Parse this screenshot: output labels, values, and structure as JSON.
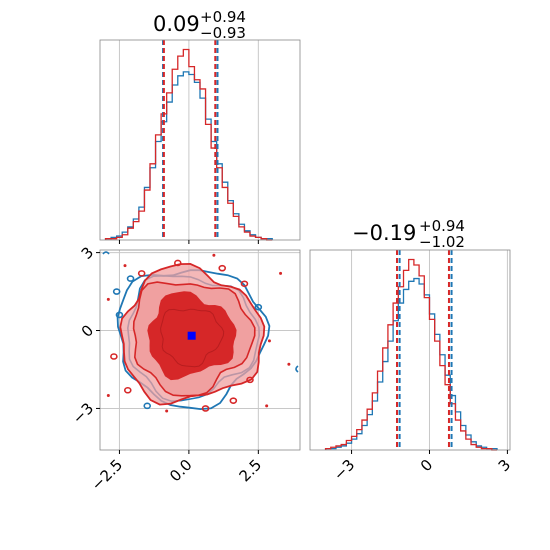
{
  "chart_data": {
    "type": "corner",
    "colors": {
      "blue": "#1f77b4",
      "red": "#d62728",
      "marker": "#0000ff",
      "red_fill": "#f0a0a0"
    },
    "grid": true,
    "parameters": [
      {
        "title": {
          "median": "0.09",
          "upper": "+0.94",
          "lower": "−0.93"
        },
        "range": [
          -3.2,
          4.0
        ],
        "tick_labels": [
          "−2.5",
          "0.0",
          "2.5"
        ],
        "tick_values": [
          -2.5,
          0.0,
          2.5
        ],
        "quantiles": {
          "blue": [
            -0.93,
            1.03
          ],
          "red": [
            -0.9,
            0.95
          ]
        },
        "hist": {
          "bin_start": -3.0,
          "bin_width": 0.2,
          "blue": [
            1,
            2,
            3,
            6,
            10,
            16,
            25,
            40,
            55,
            75,
            90,
            105,
            118,
            125,
            128,
            126,
            120,
            108,
            92,
            75,
            58,
            44,
            30,
            20,
            12,
            7,
            4,
            2,
            1,
            1
          ],
          "red": [
            1,
            1,
            2,
            4,
            9,
            14,
            22,
            38,
            58,
            80,
            96,
            112,
            130,
            140,
            145,
            132,
            122,
            115,
            88,
            70,
            55,
            40,
            28,
            18,
            10,
            6,
            3,
            2,
            1,
            0
          ]
        }
      },
      {
        "title": {
          "median": "−0.19",
          "upper": "+0.94",
          "lower": "−1.02"
        },
        "range": [
          -4.6,
          3.1
        ],
        "tick_labels": [
          "−3",
          "0",
          "3"
        ],
        "tick_values": [
          -3,
          0,
          3
        ],
        "quantiles": {
          "blue": [
            -1.15,
            0.85
          ],
          "red": [
            -1.25,
            0.75
          ]
        },
        "hist": {
          "bin_start": -4.0,
          "bin_width": 0.2,
          "blue": [
            1,
            1,
            2,
            3,
            5,
            8,
            12,
            18,
            26,
            36,
            50,
            65,
            80,
            95,
            108,
            118,
            124,
            126,
            122,
            114,
            100,
            85,
            70,
            55,
            40,
            28,
            18,
            11,
            6,
            3,
            2,
            1,
            1
          ],
          "red": [
            1,
            2,
            3,
            4,
            7,
            10,
            15,
            22,
            30,
            42,
            58,
            75,
            92,
            108,
            120,
            132,
            140,
            136,
            128,
            112,
            96,
            80,
            62,
            48,
            34,
            22,
            14,
            8,
            4,
            2,
            1,
            1,
            0
          ]
        }
      }
    ],
    "joint": {
      "center": [
        0.05,
        -0.2
      ],
      "marker": [
        0.1,
        -0.2
      ]
    }
  }
}
